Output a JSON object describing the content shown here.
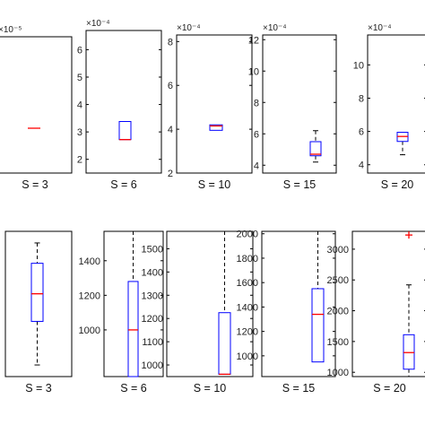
{
  "figure": {
    "background": "#ffffff",
    "axis_color": "#000000",
    "box_color": "#0000ff",
    "median_color": "#ff0000"
  },
  "chart_data": [
    {
      "type": "box",
      "xlabel": "S = 3",
      "exponent": "×10⁻⁵",
      "yticks": [],
      "box": {
        "q1": 0,
        "median": 0,
        "q3": 0,
        "whisker_low": 0,
        "whisker_high": 0
      },
      "outliers": []
    },
    {
      "type": "box",
      "xlabel": "S = 6",
      "exponent": "×10⁻⁴",
      "ylim": [
        1.5,
        6.7
      ],
      "yticks": [
        2,
        3,
        4,
        5,
        6
      ],
      "box": {
        "q1": 2.72,
        "median": 2.72,
        "q3": 3.38,
        "whisker_low": 2.72,
        "whisker_high": 3.38
      },
      "outliers": []
    },
    {
      "type": "box",
      "xlabel": "S = 10",
      "exponent": "×10⁻⁴",
      "ylim": [
        2,
        8.3
      ],
      "yticks": [
        2,
        4,
        6,
        8
      ],
      "box": {
        "q1": 3.95,
        "median": 4.15,
        "q3": 4.2,
        "whisker_low": 3.95,
        "whisker_high": 4.2
      },
      "outliers": []
    },
    {
      "type": "box",
      "xlabel": "S = 15",
      "exponent": "×10⁻⁴",
      "ylim": [
        3.5,
        12.3
      ],
      "yticks": [
        4,
        6,
        8,
        10,
        12
      ],
      "box": {
        "q1": 4.6,
        "median": 4.7,
        "q3": 5.5,
        "whisker_low": 4.2,
        "whisker_high": 6.2
      },
      "outliers": []
    },
    {
      "type": "box",
      "xlabel": "S = 20",
      "exponent": "×10⁻⁴",
      "ylim": [
        3.5,
        11.8
      ],
      "yticks": [
        4,
        6,
        8,
        10
      ],
      "box": {
        "q1": 5.4,
        "median": 5.7,
        "q3": 5.95,
        "whisker_low": 4.6,
        "whisker_high": 5.95
      },
      "outliers": []
    },
    {
      "type": "box",
      "xlabel": "S = 3",
      "yticks": [],
      "box": {
        "q1": 0.38,
        "median": 0.57,
        "q3": 0.78,
        "whisker_low": 0.08,
        "whisker_high": 0.92
      },
      "outliers": []
    },
    {
      "type": "box",
      "xlabel": "S = 6",
      "ylim": [
        730,
        1570
      ],
      "yticks": [
        1000,
        1200,
        1400
      ],
      "box": {
        "q1": 730,
        "median": 1000,
        "q3": 1280,
        "whisker_low": 730,
        "whisker_high": 1570
      },
      "outliers": []
    },
    {
      "type": "box",
      "xlabel": "S = 10",
      "ylim": [
        950,
        1575
      ],
      "yticks": [
        1000,
        1100,
        1200,
        1300,
        1400,
        1500
      ],
      "box": {
        "q1": 960,
        "median": 960,
        "q3": 1225,
        "whisker_low": 960,
        "whisker_high": 1575
      },
      "outliers": []
    },
    {
      "type": "box",
      "xlabel": "S = 15",
      "ylim": [
        830,
        2020
      ],
      "yticks": [
        1000,
        1200,
        1400,
        1600,
        1800,
        2000
      ],
      "box": {
        "q1": 950,
        "median": 1340,
        "q3": 1550,
        "whisker_low": 950,
        "whisker_high": 2020
      },
      "outliers": []
    },
    {
      "type": "box",
      "xlabel": "S = 20",
      "ylim": [
        930,
        3290
      ],
      "yticks": [
        1000,
        1500,
        2000,
        2500,
        3000
      ],
      "box": {
        "q1": 1050,
        "median": 1320,
        "q3": 1610,
        "whisker_low": 930,
        "whisker_high": 2420
      },
      "outliers": [
        3230
      ]
    }
  ]
}
